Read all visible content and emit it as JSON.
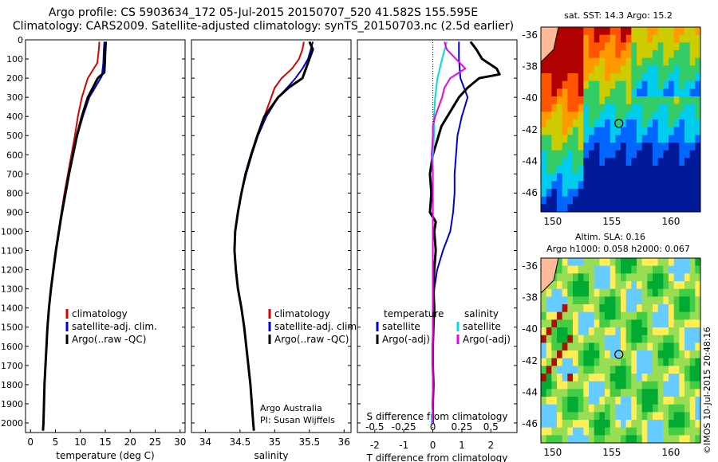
{
  "title_line1": "Argo profile: CS 5903634_172 05-Jul-2015 20150707_520 41.582S 155.595E",
  "title_line2": "Climatology: CARS2009. Satellite-adjusted climatology: synTS_20150703.nc (2.5d earlier)",
  "timestamp": "©IMOS 10-Jul-2015 20:48:16",
  "colors": {
    "climatology": "#dd0000",
    "satellite": "#0000dd",
    "argo": "#000000",
    "sal_sat": "#00dddd",
    "sal_argo": "#ee00ee"
  },
  "chart_data": [
    {
      "type": "line",
      "xlabel": "temperature (deg C)",
      "xlim": [
        -1,
        31
      ],
      "ylim": [
        0,
        2050
      ],
      "xticks": [
        0,
        5,
        10,
        15,
        20,
        25,
        30
      ],
      "yticks": [
        0,
        100,
        200,
        300,
        400,
        500,
        600,
        700,
        800,
        900,
        1000,
        1100,
        1200,
        1300,
        1400,
        1500,
        1600,
        1700,
        1800,
        1900,
        2000
      ],
      "legend": [
        "climatology",
        "satellite-adj. clim.",
        "Argo(..raw -QC)"
      ],
      "legend_position": "lower-center",
      "series": [
        {
          "name": "climatology",
          "depth": [
            10,
            50,
            120,
            200,
            300,
            400,
            500,
            600,
            700,
            800,
            900,
            1000,
            1100,
            1200,
            1300,
            1400,
            1500,
            1600,
            1700,
            1800,
            1900,
            2000,
            2040
          ],
          "values": [
            13.8,
            13.7,
            13.4,
            11.5,
            10.3,
            9.5,
            8.9,
            8.2,
            7.5,
            6.8,
            6.2,
            5.6,
            5.0,
            4.5,
            4.1,
            3.7,
            3.4,
            3.2,
            3.0,
            2.8,
            2.7,
            2.6,
            2.5
          ]
        },
        {
          "name": "satellite-adj. clim.",
          "depth": [
            10,
            50,
            120,
            190,
            300,
            400,
            500,
            600,
            700,
            800,
            900,
            1000,
            1100,
            1200,
            1300,
            1400,
            1500,
            1600,
            1700,
            1800,
            1900,
            2000,
            2040
          ],
          "values": [
            14.8,
            14.7,
            14.6,
            14.3,
            11.8,
            10.5,
            9.4,
            8.6,
            7.8,
            7.1,
            6.4,
            5.7,
            5.1,
            4.6,
            4.1,
            3.7,
            3.4,
            3.2,
            3.0,
            2.8,
            2.7,
            2.6,
            2.5
          ]
        },
        {
          "name": "Argo(..raw -QC)",
          "depth": [
            10,
            50,
            120,
            170,
            200,
            300,
            400,
            500,
            600,
            700,
            800,
            900,
            1000,
            1100,
            1200,
            1300,
            1400,
            1500,
            1600,
            1700,
            1800,
            1900,
            2000,
            2040
          ],
          "values": [
            15.1,
            15.0,
            14.9,
            14.8,
            13.5,
            11.5,
            10.3,
            9.3,
            8.5,
            7.7,
            7.0,
            6.3,
            5.7,
            5.1,
            4.6,
            4.1,
            3.7,
            3.4,
            3.2,
            3.0,
            2.8,
            2.7,
            2.6,
            2.5
          ]
        }
      ]
    },
    {
      "type": "line",
      "xlabel": "salinity",
      "xlim": [
        33.8,
        36.1
      ],
      "ylim": [
        0,
        2050
      ],
      "xticks": [
        34,
        34.5,
        35,
        35.5,
        36
      ],
      "legend": [
        "climatology",
        "satellite-adj. clim.",
        "Argo(..raw -QC)"
      ],
      "legend_position": "lower-right",
      "annotation": [
        "Argo Australia",
        "PI: Susan Wijffels"
      ],
      "series": [
        {
          "name": "climatology",
          "depth": [
            10,
            50,
            100,
            150,
            200,
            250,
            300,
            400,
            500,
            600,
            700,
            800,
            900,
            1000,
            1100,
            1200,
            1300,
            1400,
            1500,
            1600,
            1700,
            1800,
            1900,
            2000,
            2040
          ],
          "values": [
            35.42,
            35.4,
            35.35,
            35.25,
            35.1,
            35.0,
            34.95,
            34.85,
            34.75,
            34.66,
            34.58,
            34.52,
            34.47,
            34.43,
            34.42,
            34.44,
            34.47,
            34.52,
            34.56,
            34.59,
            34.62,
            34.65,
            34.67,
            34.69,
            34.7
          ]
        },
        {
          "name": "satellite-adj. clim.",
          "depth": [
            10,
            50,
            100,
            150,
            200,
            250,
            300,
            400,
            500,
            600,
            700,
            800,
            900,
            1000,
            1100,
            1200,
            1300,
            1400,
            1500,
            1600,
            1700,
            1800,
            1900,
            2000,
            2040
          ],
          "values": [
            35.55,
            35.52,
            35.48,
            35.4,
            35.3,
            35.18,
            35.05,
            34.88,
            34.76,
            34.67,
            34.59,
            34.52,
            34.47,
            34.43,
            34.42,
            34.44,
            34.47,
            34.52,
            34.56,
            34.59,
            34.62,
            34.65,
            34.67,
            34.69,
            34.7
          ]
        },
        {
          "name": "Argo(..raw -QC)",
          "depth": [
            10,
            50,
            100,
            150,
            200,
            250,
            300,
            400,
            500,
            600,
            700,
            800,
            900,
            1000,
            1100,
            1200,
            1300,
            1400,
            1500,
            1600,
            1700,
            1800,
            1900,
            2000,
            2040
          ],
          "values": [
            35.5,
            35.55,
            35.5,
            35.45,
            35.4,
            35.2,
            35.05,
            34.85,
            34.75,
            34.66,
            34.58,
            34.52,
            34.47,
            34.43,
            34.42,
            34.44,
            34.47,
            34.52,
            34.56,
            34.59,
            34.62,
            34.65,
            34.67,
            34.69,
            34.7
          ]
        }
      ]
    },
    {
      "type": "line",
      "xlabel": "T difference from climatology",
      "x2label": "S difference from climatology",
      "xlim": [
        -2.6,
        2.9
      ],
      "ylim": [
        0,
        2050
      ],
      "xticks": [
        -2,
        -1,
        0,
        1,
        2
      ],
      "x2ticks": [
        "-0.5",
        "-0.25",
        "0",
        "0.25",
        "0.5"
      ],
      "legend_temperature": [
        "temperature",
        "satellite",
        "Argo(-adj)"
      ],
      "legend_salinity": [
        "salinity",
        "satellite",
        "Argo(-adj)"
      ],
      "series": [
        {
          "name": "T satellite",
          "depth": [
            10,
            100,
            200,
            300,
            400,
            500,
            600,
            700,
            800,
            900,
            1000,
            1100,
            1200,
            1300,
            1400,
            1500,
            1600,
            1700,
            1800,
            1900,
            2000
          ],
          "values": [
            0.9,
            0.9,
            0.95,
            1.2,
            1.0,
            0.85,
            0.8,
            0.75,
            0.75,
            0.7,
            0.6,
            0.35,
            0.15,
            0.05,
            0.02,
            0.0,
            0.0,
            0.0,
            0.0,
            0.0,
            0.0
          ]
        },
        {
          "name": "T Argo(-adj)",
          "depth": [
            10,
            50,
            100,
            150,
            180,
            200,
            250,
            300,
            350,
            400,
            450,
            500,
            550,
            600,
            700,
            800,
            900,
            950,
            1000,
            1100,
            1200,
            1300,
            1400,
            1500,
            1600,
            1700,
            1800,
            1900,
            2000
          ],
          "values": [
            1.3,
            1.5,
            1.7,
            2.2,
            2.3,
            1.6,
            1.2,
            0.9,
            0.7,
            0.5,
            0.3,
            0.2,
            0.1,
            0.0,
            -0.1,
            -0.05,
            -0.1,
            0.1,
            0.05,
            0.1,
            0.05,
            0.02,
            0.05,
            0.02,
            0.0,
            0.0,
            0.02,
            0.0,
            0.0
          ]
        },
        {
          "name": "S satellite",
          "depth": [
            10,
            100,
            200,
            300,
            400,
            500,
            600,
            700,
            800,
            900,
            1000,
            1100,
            1200,
            1300,
            1400,
            1500,
            1600,
            1700,
            1800,
            1900,
            2000
          ],
          "values": [
            0.12,
            0.08,
            0.04,
            0.02,
            0.01,
            0.01,
            0.0,
            0.0,
            0.0,
            0.0,
            0.0,
            0.0,
            0.0,
            0.0,
            0.0,
            0.0,
            0.0,
            0.0,
            0.0,
            0.0,
            -0.01
          ]
        },
        {
          "name": "S Argo(-adj)",
          "depth": [
            10,
            50,
            100,
            150,
            200,
            250,
            300,
            350,
            400,
            450,
            500,
            600,
            700,
            800,
            900,
            1000,
            1200,
            1400,
            1600,
            1800,
            2000
          ],
          "values": [
            0.1,
            0.12,
            0.2,
            0.28,
            0.15,
            0.1,
            0.08,
            0.05,
            0.02,
            0.0,
            0.0,
            -0.01,
            0.0,
            0.0,
            0.0,
            0.0,
            0.0,
            0.0,
            0.0,
            0.0,
            0.0
          ]
        }
      ]
    },
    {
      "type": "heatmap",
      "title": "sat. SST: 14.3 Argo: 15.2",
      "xlim": [
        149,
        162.5
      ],
      "ylim": [
        -47.2,
        -35.5
      ],
      "xticks": [
        150,
        155,
        160
      ],
      "yticks": [
        -36,
        -38,
        -40,
        -42,
        -44,
        -46
      ],
      "marker": {
        "lon": 155.6,
        "lat": -41.6
      }
    },
    {
      "type": "heatmap",
      "title": "Altim. SLA: 0.16",
      "subtitle": "Argo h1000: 0.058 h2000: 0.067",
      "xlim": [
        149,
        162.5
      ],
      "ylim": [
        -47.2,
        -35.5
      ],
      "xticks": [
        150,
        155,
        160
      ],
      "yticks": [
        -36,
        -38,
        -40,
        -42,
        -44,
        -46
      ],
      "marker": {
        "lon": 155.6,
        "lat": -41.6
      }
    }
  ]
}
